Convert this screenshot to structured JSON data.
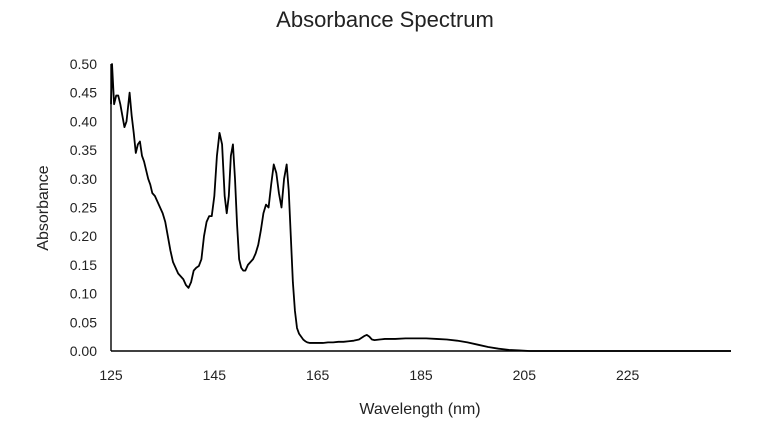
{
  "chart_data": {
    "type": "line",
    "title": "Absorbance Spectrum",
    "xlabel": "Wavelength (nm)",
    "ylabel": "Absorbance",
    "xlim": [
      125,
      245
    ],
    "ylim": [
      0,
      0.5
    ],
    "xticks": [
      125,
      145,
      165,
      185,
      205,
      225
    ],
    "yticks": [
      "0.00",
      "0.05",
      "0.10",
      "0.15",
      "0.20",
      "0.25",
      "0.30",
      "0.35",
      "0.40",
      "0.45",
      "0.50"
    ],
    "grid": false,
    "series": [
      {
        "color": "#000000",
        "x": [
          125,
          125.2,
          125.6,
          126,
          126.4,
          126.8,
          127.2,
          127.6,
          128,
          128.3,
          128.6,
          129,
          129.4,
          129.8,
          130.2,
          130.6,
          131,
          131.4,
          131.8,
          132.2,
          132.6,
          133,
          133.5,
          134,
          134.5,
          135,
          135.5,
          136,
          136.5,
          137,
          137.5,
          138,
          138.5,
          139,
          139.5,
          140,
          140.5,
          141,
          141.5,
          142,
          142.5,
          143,
          143.5,
          144,
          144.5,
          145,
          145.5,
          146,
          146.5,
          147,
          147.4,
          147.8,
          148.2,
          148.6,
          149,
          149.4,
          149.8,
          150.2,
          150.6,
          151,
          151.5,
          152,
          152.5,
          153,
          153.5,
          154,
          154.5,
          155,
          155.5,
          156,
          156.5,
          157,
          157.5,
          158,
          158.5,
          159,
          159.4,
          159.8,
          160.2,
          160.6,
          161,
          161.4,
          161.8,
          162.2,
          162.6,
          163,
          163.5,
          164,
          164.5,
          165,
          166,
          167,
          168,
          169,
          170,
          171,
          172,
          173,
          174,
          174.5,
          175,
          175.5,
          176,
          177,
          178,
          180,
          182,
          184,
          186,
          188,
          190,
          192,
          194,
          196,
          198,
          200,
          202,
          204,
          206,
          210,
          220,
          230,
          240,
          245
        ],
        "y": [
          0.43,
          0.5,
          0.43,
          0.445,
          0.445,
          0.43,
          0.41,
          0.39,
          0.4,
          0.425,
          0.45,
          0.41,
          0.38,
          0.345,
          0.36,
          0.365,
          0.34,
          0.33,
          0.315,
          0.3,
          0.29,
          0.275,
          0.27,
          0.26,
          0.25,
          0.24,
          0.225,
          0.2,
          0.175,
          0.155,
          0.145,
          0.135,
          0.13,
          0.125,
          0.115,
          0.11,
          0.12,
          0.14,
          0.145,
          0.148,
          0.16,
          0.2,
          0.225,
          0.235,
          0.235,
          0.27,
          0.34,
          0.38,
          0.36,
          0.27,
          0.24,
          0.27,
          0.34,
          0.36,
          0.3,
          0.22,
          0.16,
          0.145,
          0.14,
          0.14,
          0.15,
          0.155,
          0.16,
          0.17,
          0.185,
          0.21,
          0.24,
          0.255,
          0.25,
          0.29,
          0.325,
          0.31,
          0.275,
          0.25,
          0.3,
          0.325,
          0.28,
          0.2,
          0.12,
          0.07,
          0.04,
          0.03,
          0.025,
          0.02,
          0.017,
          0.015,
          0.014,
          0.014,
          0.014,
          0.014,
          0.014,
          0.015,
          0.015,
          0.016,
          0.016,
          0.017,
          0.018,
          0.02,
          0.026,
          0.028,
          0.025,
          0.02,
          0.019,
          0.02,
          0.021,
          0.021,
          0.022,
          0.022,
          0.022,
          0.021,
          0.02,
          0.018,
          0.015,
          0.011,
          0.007,
          0.004,
          0.002,
          0.001,
          0,
          0,
          0,
          0,
          0,
          0
        ]
      }
    ]
  }
}
